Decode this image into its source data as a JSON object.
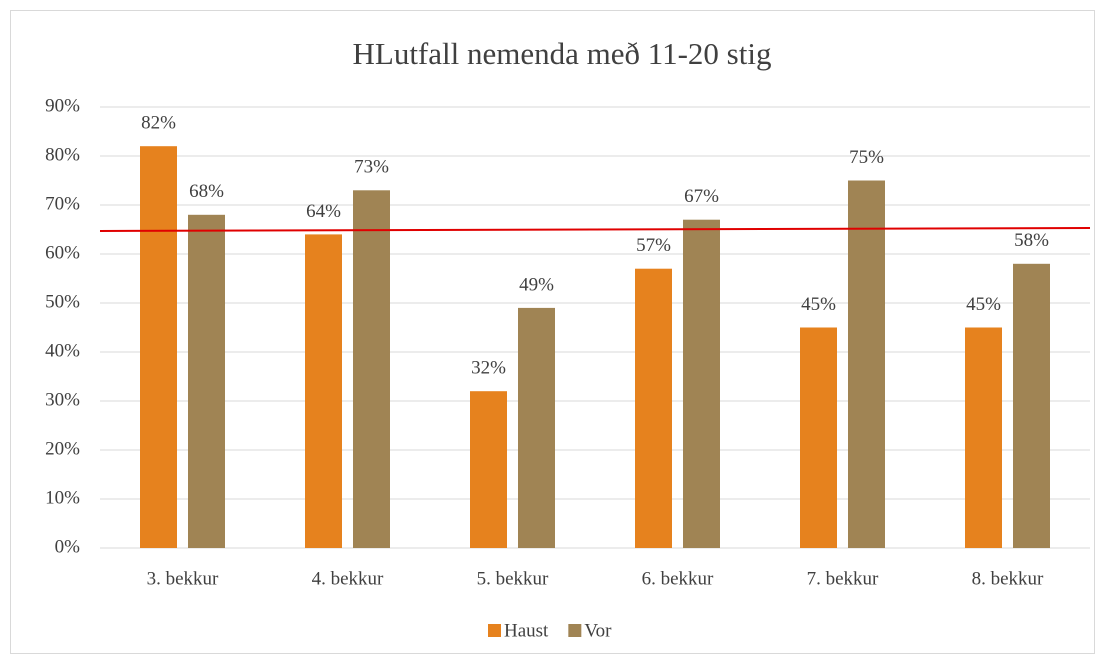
{
  "chart_data": {
    "type": "bar",
    "title": "HLutfall nemenda með 11-20 stig",
    "categories": [
      "3. bekkur",
      "4. bekkur",
      "5. bekkur",
      "6. bekkur",
      "7. bekkur",
      "8. bekkur"
    ],
    "series": [
      {
        "name": "Haust",
        "color": "#e6821e",
        "values": [
          82,
          64,
          32,
          57,
          45,
          45
        ],
        "value_labels": [
          "82%",
          "64%",
          "32%",
          "57%",
          "45%",
          "45%"
        ]
      },
      {
        "name": "Vor",
        "color": "#a08454",
        "values": [
          68,
          73,
          49,
          67,
          75,
          58
        ],
        "value_labels": [
          "68%",
          "73%",
          "49%",
          "67%",
          "75%",
          "58%"
        ]
      }
    ],
    "ylim": [
      0,
      90
    ],
    "yticks": [
      {
        "value": 0,
        "label": "0%"
      },
      {
        "value": 10,
        "label": "10%"
      },
      {
        "value": 20,
        "label": "20%"
      },
      {
        "value": 30,
        "label": "30%"
      },
      {
        "value": 40,
        "label": "40%"
      },
      {
        "value": 50,
        "label": "50%"
      },
      {
        "value": 60,
        "label": "60%"
      },
      {
        "value": 70,
        "label": "70%"
      },
      {
        "value": 80,
        "label": "80%"
      },
      {
        "value": 90,
        "label": "90%"
      }
    ],
    "grid": true,
    "legend": "bottom",
    "reference_line": {
      "color": "#e00000",
      "from": 64.7,
      "to": 65.3
    }
  }
}
